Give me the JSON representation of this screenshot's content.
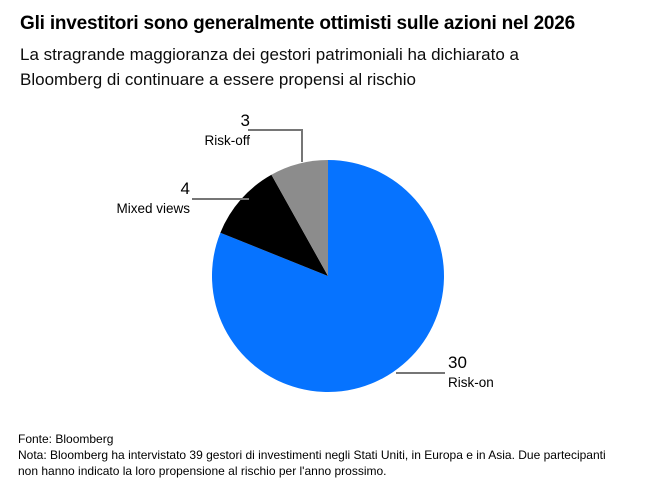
{
  "header": {
    "title": "Gli investitori sono generalmente ottimisti sulle azioni nel 2026",
    "subtitle_line1": "La stragrande maggioranza dei gestori patrimoniali ha dichiarato a",
    "subtitle_line2": "Bloomberg di continuare a essere propensi al rischio"
  },
  "chart_data": {
    "type": "pie",
    "title": "Gli investitori sono generalmente ottimisti sulle azioni nel 2026",
    "slices": [
      {
        "label": "Risk-on",
        "value": 30,
        "color": "#0673FF"
      },
      {
        "label": "Mixed views",
        "value": 4,
        "color": "#000000"
      },
      {
        "label": "Risk-off",
        "value": 3,
        "color": "#8C8C8C"
      }
    ],
    "start_angle_deg": 0,
    "direction": "clockwise",
    "legend_position": "none",
    "label_style": "leader-lines",
    "leader_line_color": "#767676"
  },
  "footer": {
    "source": "Fonte: Bloomberg",
    "note_line1": "Nota: Bloomberg ha intervistato 39 gestori di investimenti negli Stati Uniti, in Europa e in Asia. Due partecipanti",
    "note_line2": "non hanno indicato la loro propensione al rischio per l'anno prossimo."
  }
}
